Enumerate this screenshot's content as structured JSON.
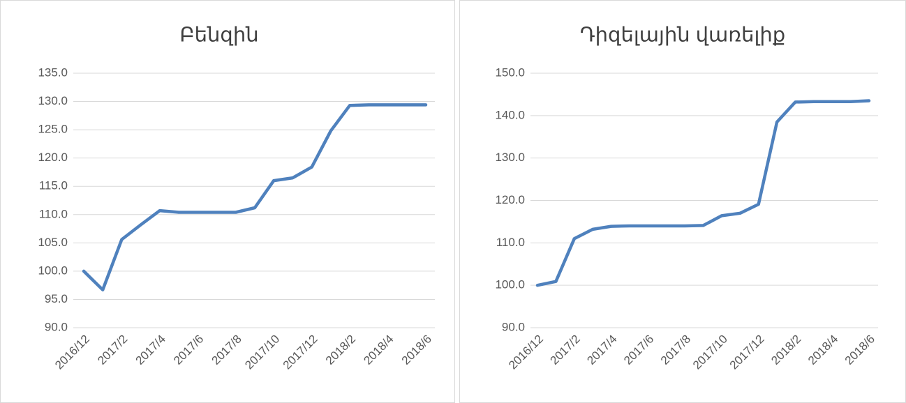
{
  "chart_data": [
    {
      "type": "line",
      "title": "Բենզին",
      "categories": [
        "2016/12",
        null,
        "2017/2",
        null,
        "2017/4",
        null,
        "2017/6",
        null,
        "2017/8",
        null,
        "2017/10",
        null,
        "2017/12",
        null,
        "2018/2",
        null,
        "2018/4",
        null,
        "2018/6"
      ],
      "values": [
        100,
        96.7,
        105.6,
        108.2,
        110.7,
        110.4,
        110.4,
        110.4,
        110.4,
        111.2,
        116.0,
        116.5,
        118.4,
        124.8,
        129.3,
        129.4,
        129.4,
        129.4,
        129.4
      ],
      "color": "#4f81bd",
      "ylim": [
        90,
        135
      ],
      "yticks": [
        {
          "value": 90,
          "label": "90.0"
        },
        {
          "value": 95,
          "label": "95.0"
        },
        {
          "value": 100,
          "label": "100.0"
        },
        {
          "value": 105,
          "label": "105.0"
        },
        {
          "value": 110,
          "label": "110.0"
        },
        {
          "value": 115,
          "label": "115.0"
        },
        {
          "value": 120,
          "label": "120.0"
        },
        {
          "value": 125,
          "label": "125.0"
        },
        {
          "value": 130,
          "label": "130.0"
        },
        {
          "value": 135,
          "label": "135.0"
        }
      ],
      "grid": true
    },
    {
      "type": "line",
      "title": "Դիզելային վառելիք",
      "categories": [
        "2016/12",
        null,
        "2017/2",
        null,
        "2017/4",
        null,
        "2017/6",
        null,
        "2017/8",
        null,
        "2017/10",
        null,
        "2017/12",
        null,
        "2018/2",
        null,
        "2018/4",
        null,
        "2018/6"
      ],
      "values": [
        100,
        100.9,
        111.0,
        113.2,
        113.9,
        114.0,
        114.0,
        114.0,
        114.0,
        114.1,
        116.4,
        117.0,
        119.1,
        138.5,
        143.2,
        143.3,
        143.3,
        143.3,
        143.5
      ],
      "color": "#4f81bd",
      "ylim": [
        90,
        150
      ],
      "yticks": [
        {
          "value": 90,
          "label": "90.0"
        },
        {
          "value": 100,
          "label": "100.0"
        },
        {
          "value": 110,
          "label": "110.0"
        },
        {
          "value": 120,
          "label": "120.0"
        },
        {
          "value": 130,
          "label": "130.0"
        },
        {
          "value": 140,
          "label": "140.0"
        },
        {
          "value": 150,
          "label": "150.0"
        }
      ],
      "grid": true
    }
  ]
}
